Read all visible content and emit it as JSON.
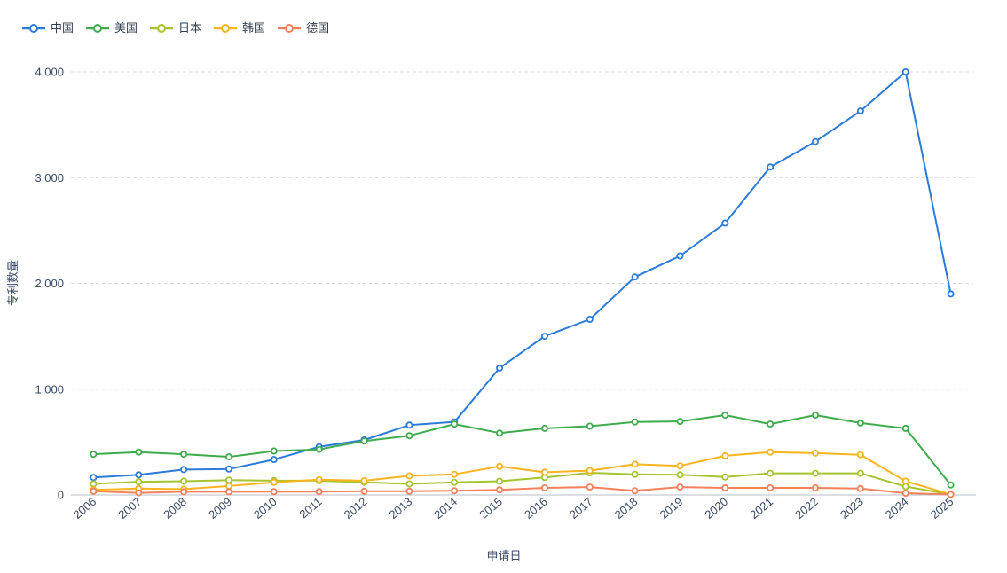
{
  "page": {
    "background": "#ffffff"
  },
  "chart_data": {
    "type": "line",
    "title": "",
    "xlabel": "申请日",
    "ylabel": "专利数量",
    "x": [
      "2006",
      "2007",
      "2008",
      "2009",
      "2010",
      "2011",
      "2012",
      "2013",
      "2014",
      "2015",
      "2016",
      "2017",
      "2018",
      "2019",
      "2020",
      "2021",
      "2022",
      "2023",
      "2024",
      "2025"
    ],
    "series": [
      {
        "name": "中国",
        "slug": "china",
        "color": "#2b7bd9",
        "values": [
          165,
          190,
          240,
          245,
          335,
          455,
          520,
          660,
          690,
          1200,
          1500,
          1660,
          2060,
          2260,
          2570,
          3100,
          3340,
          3630,
          4000,
          1900
        ]
      },
      {
        "name": "美国",
        "slug": "usa",
        "color": "#3eac4d",
        "values": [
          385,
          405,
          385,
          360,
          415,
          430,
          510,
          560,
          670,
          585,
          630,
          650,
          690,
          695,
          755,
          670,
          755,
          680,
          630,
          95
        ]
      },
      {
        "name": "日本",
        "slug": "japan",
        "color": "#a6c42d",
        "values": [
          105,
          125,
          130,
          140,
          135,
          135,
          120,
          105,
          120,
          130,
          165,
          210,
          195,
          190,
          170,
          205,
          205,
          205,
          80,
          5
        ]
      },
      {
        "name": "韩国",
        "slug": "korea",
        "color": "#f9b41f",
        "values": [
          48,
          60,
          55,
          85,
          120,
          145,
          135,
          180,
          195,
          270,
          215,
          230,
          290,
          275,
          370,
          405,
          395,
          380,
          130,
          6
        ]
      },
      {
        "name": "德国",
        "slug": "germany",
        "color": "#f5815c",
        "values": [
          35,
          20,
          30,
          30,
          32,
          32,
          35,
          35,
          40,
          48,
          67,
          75,
          40,
          75,
          67,
          67,
          67,
          60,
          17,
          5
        ]
      }
    ],
    "legend": [
      "中国",
      "美国",
      "日本",
      "韩国",
      "德国"
    ],
    "legend_position": "top-left",
    "ylim": [
      0,
      4000
    ],
    "yticks": [
      0,
      1000,
      2000,
      3000,
      4000
    ],
    "ytick_labels": [
      "0",
      "1,000",
      "2,000",
      "3,000",
      "4,000"
    ],
    "grid": "horizontal dashed",
    "x_label_rotation": -40
  },
  "style": {
    "grid_color": "#d8dade",
    "axis_line_color": "#b7bcc4",
    "text_color": "#3a4a66"
  }
}
